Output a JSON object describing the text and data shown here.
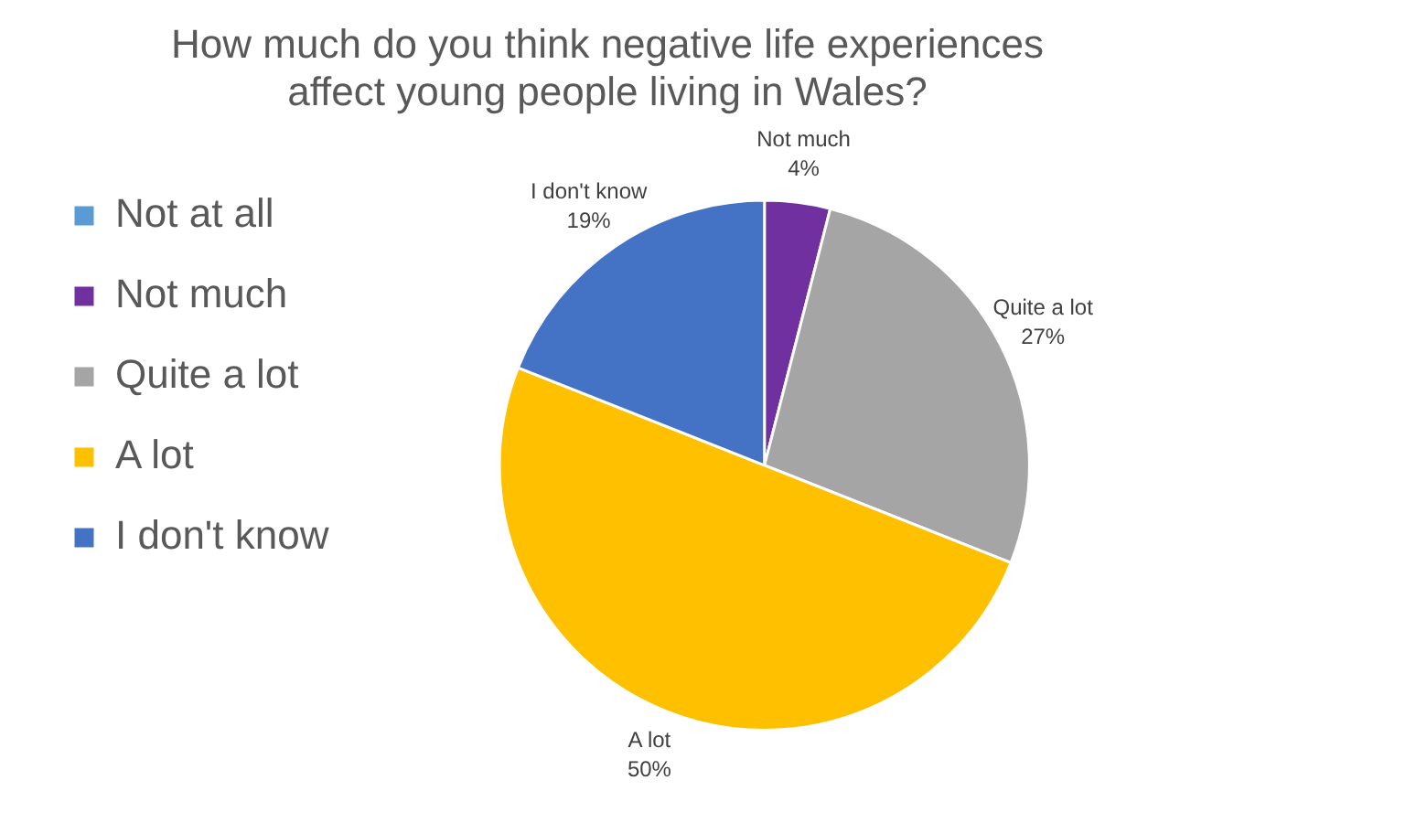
{
  "chart_data": {
    "type": "pie",
    "title": "How much do you think negative life experiences affect young people living in Wales?",
    "categories": [
      "Not at all",
      "Not much",
      "Quite a lot",
      "A lot",
      "I don't know"
    ],
    "values": [
      0,
      4,
      27,
      50,
      19
    ],
    "value_labels": [
      null,
      "4%",
      "27%",
      "50%",
      "19%"
    ],
    "colors": [
      "#5b9bd5",
      "#7030a0",
      "#a5a5a5",
      "#ffc000",
      "#4472c4"
    ],
    "legend": "left"
  }
}
